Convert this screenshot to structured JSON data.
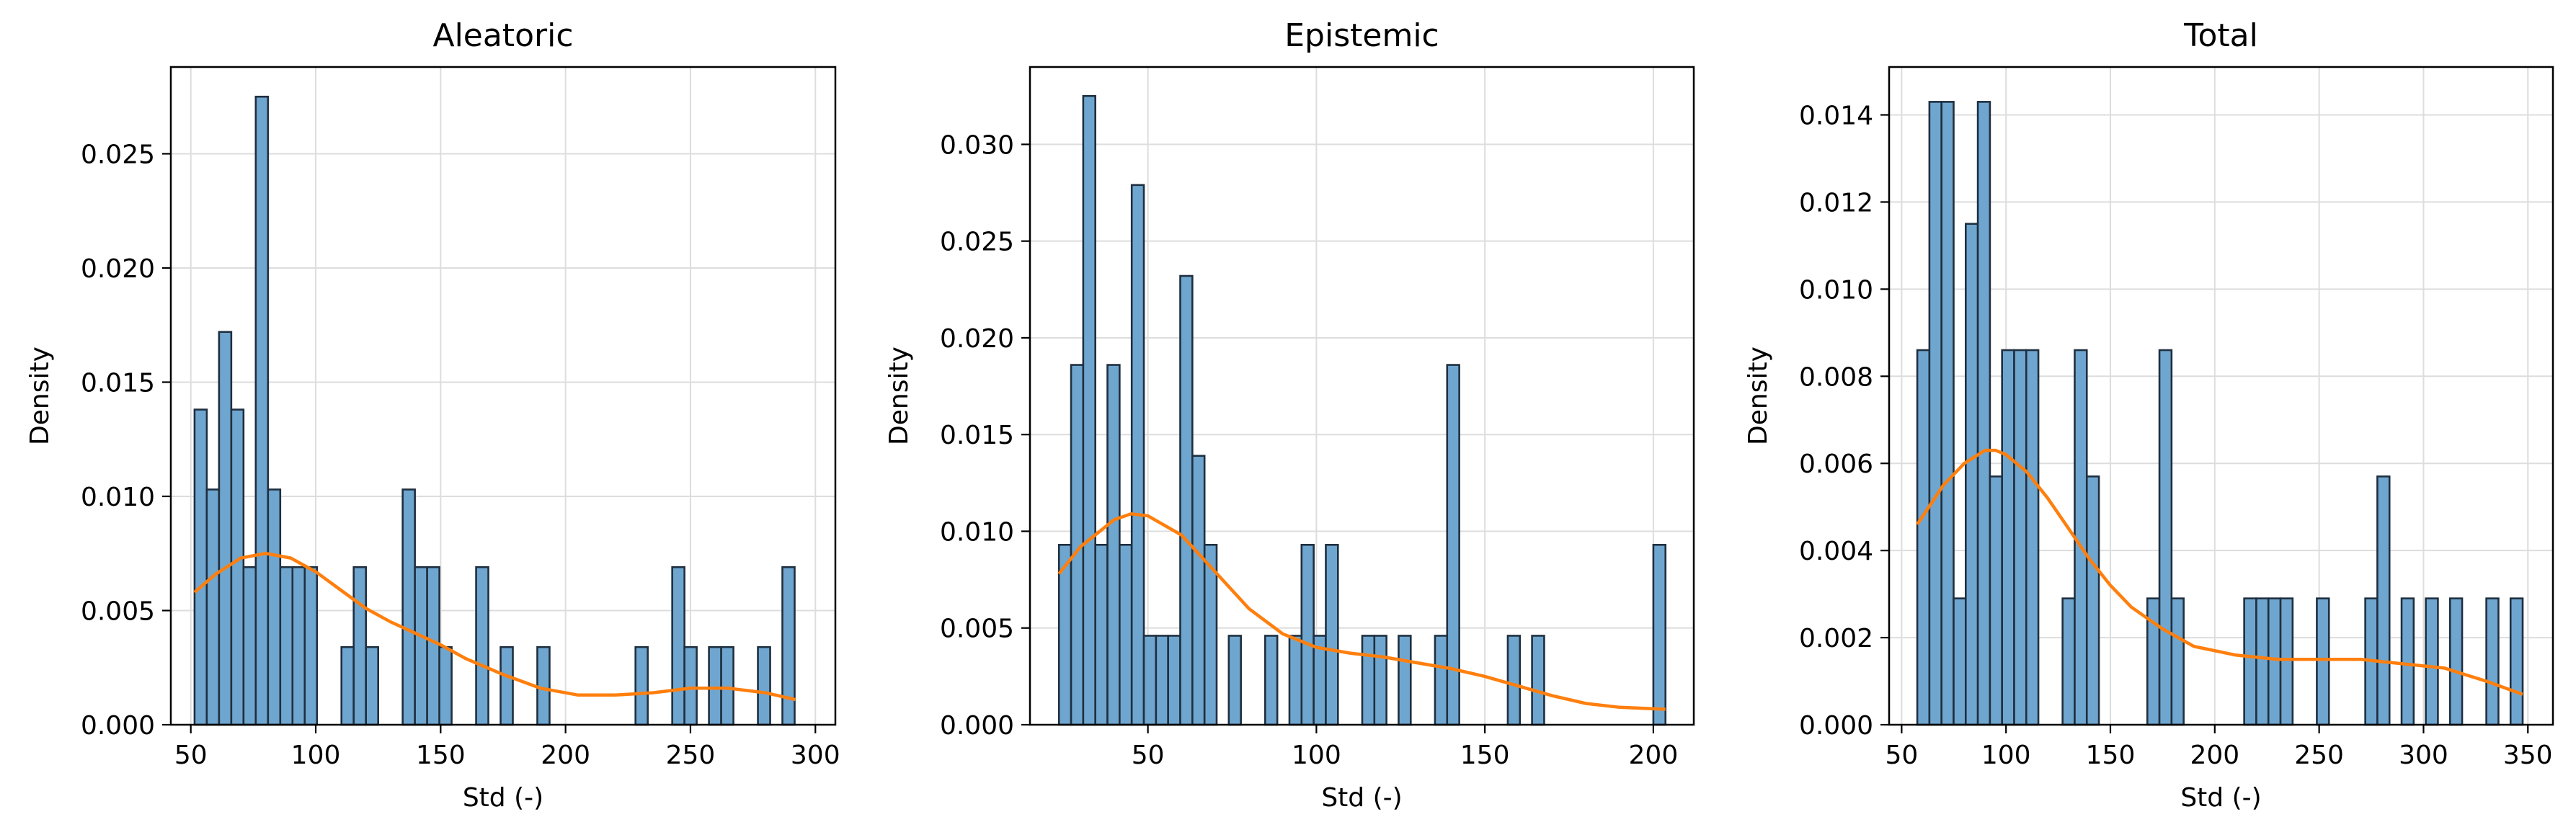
{
  "colors": {
    "bar_fill": "#6fa6cf",
    "bar_edge": "#1f2f3f",
    "kde_line": "#ff7f0e",
    "grid": "#dddddd",
    "axes": "#000000"
  },
  "chart_data": [
    {
      "type": "bar",
      "title": "Aleatoric",
      "xlabel": "Std (-)",
      "ylabel": "Density",
      "xlim": [
        42,
        308
      ],
      "ylim": [
        0,
        0.0288
      ],
      "xticks": [
        50,
        100,
        150,
        200,
        250,
        300
      ],
      "xtick_labels": [
        "50",
        "100",
        "150",
        "200",
        "250",
        "300"
      ],
      "yticks": [
        0,
        0.005,
        0.01,
        0.015,
        0.02,
        0.025
      ],
      "ytick_labels": [
        "0.000",
        "0.005",
        "0.010",
        "0.015",
        "0.020",
        "0.025"
      ],
      "grid": true,
      "bins": [
        {
          "x0": 51.5,
          "x1": 56.4,
          "density": 0.0138
        },
        {
          "x0": 56.4,
          "x1": 61.3,
          "density": 0.0103
        },
        {
          "x0": 61.3,
          "x1": 66.2,
          "density": 0.0172
        },
        {
          "x0": 66.2,
          "x1": 71.1,
          "density": 0.0138
        },
        {
          "x0": 71.1,
          "x1": 76.0,
          "density": 0.0069
        },
        {
          "x0": 76.0,
          "x1": 80.9,
          "density": 0.0275
        },
        {
          "x0": 80.9,
          "x1": 85.8,
          "density": 0.0103
        },
        {
          "x0": 85.8,
          "x1": 90.7,
          "density": 0.0069
        },
        {
          "x0": 90.7,
          "x1": 95.6,
          "density": 0.0069
        },
        {
          "x0": 95.6,
          "x1": 100.5,
          "density": 0.0069
        },
        {
          "x0": 110.3,
          "x1": 115.2,
          "density": 0.0034
        },
        {
          "x0": 115.2,
          "x1": 120.1,
          "density": 0.0069
        },
        {
          "x0": 120.1,
          "x1": 125.0,
          "density": 0.0034
        },
        {
          "x0": 134.8,
          "x1": 139.7,
          "density": 0.0103
        },
        {
          "x0": 139.7,
          "x1": 144.6,
          "density": 0.0069
        },
        {
          "x0": 144.6,
          "x1": 149.5,
          "density": 0.0069
        },
        {
          "x0": 149.5,
          "x1": 154.4,
          "density": 0.0034
        },
        {
          "x0": 164.2,
          "x1": 169.1,
          "density": 0.0069
        },
        {
          "x0": 174.0,
          "x1": 178.9,
          "density": 0.0034
        },
        {
          "x0": 188.7,
          "x1": 193.6,
          "density": 0.0034
        },
        {
          "x0": 228.0,
          "x1": 232.9,
          "density": 0.0034
        },
        {
          "x0": 242.7,
          "x1": 247.6,
          "density": 0.0069
        },
        {
          "x0": 247.6,
          "x1": 252.5,
          "density": 0.0034
        },
        {
          "x0": 257.4,
          "x1": 262.3,
          "density": 0.0034
        },
        {
          "x0": 262.3,
          "x1": 267.2,
          "density": 0.0034
        },
        {
          "x0": 277.0,
          "x1": 281.9,
          "density": 0.0034
        },
        {
          "x0": 286.8,
          "x1": 291.7,
          "density": 0.0069
        }
      ],
      "kde": {
        "x": [
          51.5,
          60,
          70,
          80,
          90,
          100,
          110,
          120,
          130,
          140,
          150,
          160,
          175,
          190,
          205,
          220,
          235,
          250,
          265,
          280,
          292
        ],
        "y": [
          0.0058,
          0.0066,
          0.0073,
          0.0075,
          0.0073,
          0.0067,
          0.0059,
          0.0051,
          0.0045,
          0.004,
          0.0035,
          0.0029,
          0.0022,
          0.0016,
          0.0013,
          0.0013,
          0.0014,
          0.0016,
          0.0016,
          0.0014,
          0.0011
        ]
      }
    },
    {
      "type": "bar",
      "title": "Epistemic",
      "xlabel": "Std (-)",
      "ylabel": "Density",
      "xlim": [
        15,
        212
      ],
      "ylim": [
        0,
        0.034
      ],
      "xticks": [
        50,
        100,
        150,
        200
      ],
      "xtick_labels": [
        "50",
        "100",
        "150",
        "200"
      ],
      "yticks": [
        0,
        0.005,
        0.01,
        0.015,
        0.02,
        0.025,
        0.03
      ],
      "ytick_labels": [
        "0.000",
        "0.005",
        "0.010",
        "0.015",
        "0.020",
        "0.025",
        "0.030"
      ],
      "grid": true,
      "bins": [
        {
          "x0": 23.6,
          "x1": 27.2,
          "density": 0.0093
        },
        {
          "x0": 27.2,
          "x1": 30.8,
          "density": 0.0186
        },
        {
          "x0": 30.8,
          "x1": 34.4,
          "density": 0.0325
        },
        {
          "x0": 34.4,
          "x1": 38.0,
          "density": 0.0093
        },
        {
          "x0": 38.0,
          "x1": 41.6,
          "density": 0.0186
        },
        {
          "x0": 41.6,
          "x1": 45.2,
          "density": 0.0093
        },
        {
          "x0": 45.2,
          "x1": 48.8,
          "density": 0.0279
        },
        {
          "x0": 48.8,
          "x1": 52.4,
          "density": 0.0046
        },
        {
          "x0": 52.4,
          "x1": 56.0,
          "density": 0.0046
        },
        {
          "x0": 56.0,
          "x1": 59.6,
          "density": 0.0046
        },
        {
          "x0": 59.6,
          "x1": 63.2,
          "density": 0.0232
        },
        {
          "x0": 63.2,
          "x1": 66.8,
          "density": 0.0139
        },
        {
          "x0": 66.8,
          "x1": 70.4,
          "density": 0.0093
        },
        {
          "x0": 74.0,
          "x1": 77.6,
          "density": 0.0046
        },
        {
          "x0": 84.8,
          "x1": 88.4,
          "density": 0.0046
        },
        {
          "x0": 92.0,
          "x1": 95.6,
          "density": 0.0046
        },
        {
          "x0": 95.6,
          "x1": 99.2,
          "density": 0.0093
        },
        {
          "x0": 99.2,
          "x1": 102.8,
          "density": 0.0046
        },
        {
          "x0": 102.8,
          "x1": 106.4,
          "density": 0.0093
        },
        {
          "x0": 113.6,
          "x1": 117.2,
          "density": 0.0046
        },
        {
          "x0": 117.2,
          "x1": 120.8,
          "density": 0.0046
        },
        {
          "x0": 124.4,
          "x1": 128.0,
          "density": 0.0046
        },
        {
          "x0": 135.2,
          "x1": 138.8,
          "density": 0.0046
        },
        {
          "x0": 138.8,
          "x1": 142.4,
          "density": 0.0186
        },
        {
          "x0": 156.8,
          "x1": 160.4,
          "density": 0.0046
        },
        {
          "x0": 164.0,
          "x1": 167.6,
          "density": 0.0046
        },
        {
          "x0": 200.0,
          "x1": 203.6,
          "density": 0.0093
        }
      ],
      "kde": {
        "x": [
          23.6,
          30,
          40,
          45,
          50,
          60,
          70,
          80,
          90,
          100,
          110,
          120,
          130,
          140,
          150,
          160,
          170,
          180,
          190,
          203.6
        ],
        "y": [
          0.0078,
          0.0092,
          0.0106,
          0.0109,
          0.0108,
          0.0098,
          0.0079,
          0.006,
          0.0047,
          0.004,
          0.0037,
          0.0035,
          0.0032,
          0.0029,
          0.0025,
          0.002,
          0.0015,
          0.0011,
          0.0009,
          0.0008
        ]
      }
    },
    {
      "type": "bar",
      "title": "Total",
      "xlabel": "Std (-)",
      "ylabel": "Density",
      "xlim": [
        44,
        362
      ],
      "ylim": [
        0,
        0.0151
      ],
      "xticks": [
        50,
        100,
        150,
        200,
        250,
        300,
        350
      ],
      "xtick_labels": [
        "50",
        "100",
        "150",
        "200",
        "250",
        "300",
        "350"
      ],
      "yticks": [
        0,
        0.002,
        0.004,
        0.006,
        0.008,
        0.01,
        0.012,
        0.014
      ],
      "ytick_labels": [
        "0.000",
        "0.002",
        "0.004",
        "0.006",
        "0.008",
        "0.010",
        "0.012",
        "0.014"
      ],
      "grid": true,
      "bins": [
        {
          "x0": 57.5,
          "x1": 63.3,
          "density": 0.0086
        },
        {
          "x0": 63.3,
          "x1": 69.1,
          "density": 0.0143
        },
        {
          "x0": 69.1,
          "x1": 74.9,
          "density": 0.0143
        },
        {
          "x0": 74.9,
          "x1": 80.7,
          "density": 0.0029
        },
        {
          "x0": 80.7,
          "x1": 86.5,
          "density": 0.0115
        },
        {
          "x0": 86.5,
          "x1": 92.3,
          "density": 0.0143
        },
        {
          "x0": 92.3,
          "x1": 98.1,
          "density": 0.0057
        },
        {
          "x0": 98.1,
          "x1": 103.9,
          "density": 0.0086
        },
        {
          "x0": 103.9,
          "x1": 109.7,
          "density": 0.0086
        },
        {
          "x0": 109.7,
          "x1": 115.5,
          "density": 0.0086
        },
        {
          "x0": 127.1,
          "x1": 132.9,
          "density": 0.0029
        },
        {
          "x0": 132.9,
          "x1": 138.7,
          "density": 0.0086
        },
        {
          "x0": 138.7,
          "x1": 144.5,
          "density": 0.0057
        },
        {
          "x0": 167.7,
          "x1": 173.5,
          "density": 0.0029
        },
        {
          "x0": 173.5,
          "x1": 179.3,
          "density": 0.0086
        },
        {
          "x0": 179.3,
          "x1": 185.1,
          "density": 0.0029
        },
        {
          "x0": 214.1,
          "x1": 219.9,
          "density": 0.0029
        },
        {
          "x0": 219.9,
          "x1": 225.7,
          "density": 0.0029
        },
        {
          "x0": 225.7,
          "x1": 231.5,
          "density": 0.0029
        },
        {
          "x0": 231.5,
          "x1": 237.3,
          "density": 0.0029
        },
        {
          "x0": 248.9,
          "x1": 254.7,
          "density": 0.0029
        },
        {
          "x0": 272.1,
          "x1": 277.9,
          "density": 0.0029
        },
        {
          "x0": 277.9,
          "x1": 283.7,
          "density": 0.0057
        },
        {
          "x0": 289.5,
          "x1": 295.3,
          "density": 0.0029
        },
        {
          "x0": 301.1,
          "x1": 306.9,
          "density": 0.0029
        },
        {
          "x0": 312.7,
          "x1": 318.5,
          "density": 0.0029
        },
        {
          "x0": 330.1,
          "x1": 335.9,
          "density": 0.0029
        },
        {
          "x0": 341.7,
          "x1": 347.5,
          "density": 0.0029
        }
      ],
      "kde": {
        "x": [
          57.5,
          70,
          80,
          90,
          95,
          100,
          110,
          120,
          130,
          140,
          150,
          160,
          175,
          190,
          210,
          230,
          250,
          270,
          290,
          310,
          330,
          347.5
        ],
        "y": [
          0.0046,
          0.0055,
          0.006,
          0.0063,
          0.0063,
          0.0062,
          0.0058,
          0.0052,
          0.0045,
          0.0038,
          0.0032,
          0.0027,
          0.0022,
          0.0018,
          0.0016,
          0.0015,
          0.0015,
          0.0015,
          0.0014,
          0.0013,
          0.001,
          0.0007
        ]
      }
    }
  ]
}
